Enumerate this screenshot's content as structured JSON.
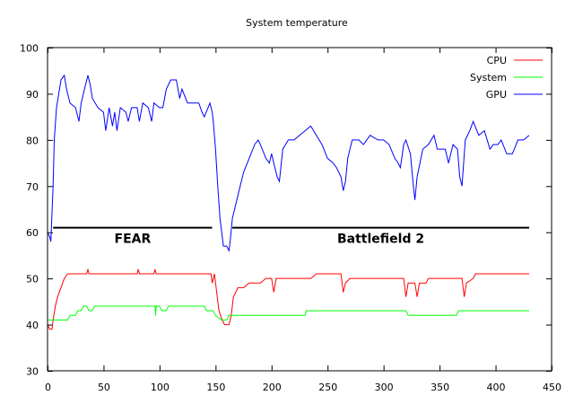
{
  "chart_data": {
    "type": "line",
    "title": "System temperature",
    "xlabel": "",
    "ylabel": "",
    "xlim": [
      0,
      450
    ],
    "ylim": [
      30,
      100
    ],
    "xticks": [
      0,
      50,
      100,
      150,
      200,
      250,
      300,
      350,
      400,
      450
    ],
    "yticks": [
      30,
      40,
      50,
      60,
      70,
      80,
      90,
      100
    ],
    "grid": false,
    "legend_position": "top-right",
    "series": [
      {
        "name": "CPU",
        "color": "#ff0000",
        "points": [
          [
            0,
            40
          ],
          [
            2,
            39
          ],
          [
            4,
            39
          ],
          [
            5,
            41
          ],
          [
            7,
            44
          ],
          [
            9,
            46
          ],
          [
            12,
            48
          ],
          [
            15,
            50
          ],
          [
            18,
            51
          ],
          [
            35,
            51
          ],
          [
            36,
            52
          ],
          [
            37,
            51
          ],
          [
            80,
            51
          ],
          [
            81,
            52
          ],
          [
            82,
            51
          ],
          [
            95,
            51
          ],
          [
            96,
            52
          ],
          [
            97,
            51
          ],
          [
            146,
            51
          ],
          [
            147,
            49
          ],
          [
            149,
            51
          ],
          [
            151,
            47
          ],
          [
            153,
            43
          ],
          [
            156,
            41
          ],
          [
            158,
            40
          ],
          [
            162,
            40
          ],
          [
            164,
            42
          ],
          [
            166,
            46
          ],
          [
            170,
            48
          ],
          [
            175,
            48
          ],
          [
            180,
            49
          ],
          [
            190,
            49
          ],
          [
            195,
            50
          ],
          [
            200,
            50
          ],
          [
            202,
            47
          ],
          [
            204,
            50
          ],
          [
            225,
            50
          ],
          [
            235,
            50
          ],
          [
            240,
            51
          ],
          [
            262,
            51
          ],
          [
            264,
            47
          ],
          [
            266,
            49
          ],
          [
            270,
            50
          ],
          [
            318,
            50
          ],
          [
            320,
            46
          ],
          [
            322,
            49
          ],
          [
            328,
            49
          ],
          [
            330,
            46
          ],
          [
            332,
            49
          ],
          [
            338,
            49
          ],
          [
            340,
            50
          ],
          [
            370,
            50
          ],
          [
            372,
            46
          ],
          [
            374,
            49
          ],
          [
            380,
            50
          ],
          [
            382,
            51
          ],
          [
            430,
            51
          ]
        ]
      },
      {
        "name": "System",
        "color": "#00ff00",
        "points": [
          [
            0,
            41
          ],
          [
            18,
            41
          ],
          [
            20,
            42
          ],
          [
            25,
            42
          ],
          [
            27,
            43
          ],
          [
            30,
            43
          ],
          [
            32,
            44
          ],
          [
            35,
            44
          ],
          [
            37,
            43
          ],
          [
            40,
            43
          ],
          [
            42,
            44
          ],
          [
            75,
            44
          ],
          [
            96,
            44
          ],
          [
            96.5,
            42
          ],
          [
            97,
            44
          ],
          [
            100,
            44
          ],
          [
            102,
            43
          ],
          [
            106,
            43
          ],
          [
            108,
            44
          ],
          [
            140,
            44
          ],
          [
            142,
            43
          ],
          [
            148,
            43
          ],
          [
            150,
            42
          ],
          [
            155,
            41
          ],
          [
            160,
            41
          ],
          [
            162,
            42
          ],
          [
            230,
            42
          ],
          [
            231,
            43
          ],
          [
            320,
            43
          ],
          [
            322,
            42
          ],
          [
            365,
            42
          ],
          [
            367,
            43
          ],
          [
            430,
            43
          ]
        ]
      },
      {
        "name": "GPU",
        "color": "#0000ff",
        "points": [
          [
            0,
            60
          ],
          [
            2,
            59
          ],
          [
            3,
            58
          ],
          [
            5,
            70
          ],
          [
            6,
            80
          ],
          [
            8,
            87
          ],
          [
            10,
            90
          ],
          [
            12,
            93
          ],
          [
            15,
            94
          ],
          [
            17,
            91
          ],
          [
            20,
            88
          ],
          [
            25,
            87
          ],
          [
            28,
            84
          ],
          [
            30,
            88
          ],
          [
            33,
            91
          ],
          [
            36,
            94
          ],
          [
            38,
            92
          ],
          [
            40,
            89
          ],
          [
            45,
            87
          ],
          [
            50,
            86
          ],
          [
            52,
            82
          ],
          [
            55,
            87
          ],
          [
            58,
            83
          ],
          [
            60,
            86
          ],
          [
            62,
            82
          ],
          [
            65,
            87
          ],
          [
            70,
            86
          ],
          [
            72,
            84
          ],
          [
            75,
            87
          ],
          [
            80,
            87
          ],
          [
            82,
            84
          ],
          [
            85,
            88
          ],
          [
            90,
            87
          ],
          [
            93,
            84
          ],
          [
            95,
            88
          ],
          [
            100,
            87
          ],
          [
            103,
            87
          ],
          [
            106,
            91
          ],
          [
            110,
            93
          ],
          [
            115,
            93
          ],
          [
            118,
            89
          ],
          [
            120,
            91
          ],
          [
            125,
            88
          ],
          [
            130,
            88
          ],
          [
            135,
            88
          ],
          [
            138,
            86
          ],
          [
            140,
            85
          ],
          [
            145,
            88
          ],
          [
            147,
            86
          ],
          [
            148,
            84
          ],
          [
            150,
            78
          ],
          [
            152,
            70
          ],
          [
            154,
            63
          ],
          [
            157,
            57
          ],
          [
            160,
            57
          ],
          [
            162,
            56
          ],
          [
            163,
            58
          ],
          [
            165,
            63
          ],
          [
            168,
            66
          ],
          [
            172,
            70
          ],
          [
            175,
            73
          ],
          [
            180,
            76
          ],
          [
            185,
            79
          ],
          [
            188,
            80
          ],
          [
            190,
            79
          ],
          [
            195,
            76
          ],
          [
            198,
            75
          ],
          [
            200,
            77
          ],
          [
            203,
            74
          ],
          [
            205,
            72
          ],
          [
            207,
            71
          ],
          [
            210,
            78
          ],
          [
            215,
            80
          ],
          [
            220,
            80
          ],
          [
            225,
            81
          ],
          [
            230,
            82
          ],
          [
            235,
            83
          ],
          [
            240,
            81
          ],
          [
            245,
            79
          ],
          [
            250,
            76
          ],
          [
            255,
            75
          ],
          [
            258,
            74
          ],
          [
            262,
            72
          ],
          [
            264,
            69
          ],
          [
            266,
            71
          ],
          [
            268,
            76
          ],
          [
            272,
            80
          ],
          [
            278,
            80
          ],
          [
            282,
            79
          ],
          [
            288,
            81
          ],
          [
            295,
            80
          ],
          [
            300,
            80
          ],
          [
            305,
            79
          ],
          [
            310,
            76
          ],
          [
            313,
            75
          ],
          [
            315,
            74
          ],
          [
            318,
            79
          ],
          [
            320,
            80
          ],
          [
            324,
            77
          ],
          [
            327,
            69
          ],
          [
            328,
            67
          ],
          [
            330,
            72
          ],
          [
            335,
            78
          ],
          [
            340,
            79
          ],
          [
            345,
            81
          ],
          [
            348,
            78
          ],
          [
            350,
            78
          ],
          [
            355,
            78
          ],
          [
            358,
            75
          ],
          [
            362,
            79
          ],
          [
            366,
            78
          ],
          [
            368,
            72
          ],
          [
            370,
            70
          ],
          [
            373,
            80
          ],
          [
            377,
            82
          ],
          [
            380,
            84
          ],
          [
            385,
            81
          ],
          [
            390,
            82
          ],
          [
            395,
            78
          ],
          [
            398,
            79
          ],
          [
            402,
            79
          ],
          [
            405,
            80
          ],
          [
            410,
            77
          ],
          [
            415,
            77
          ],
          [
            420,
            80
          ],
          [
            425,
            80
          ],
          [
            430,
            81
          ]
        ]
      }
    ],
    "annotations": [
      {
        "text": "FEAR",
        "x_range": [
          5,
          147
        ],
        "y": 61
      },
      {
        "text": "Battlefield 2",
        "x_range": [
          165,
          430
        ],
        "y": 61
      }
    ]
  }
}
